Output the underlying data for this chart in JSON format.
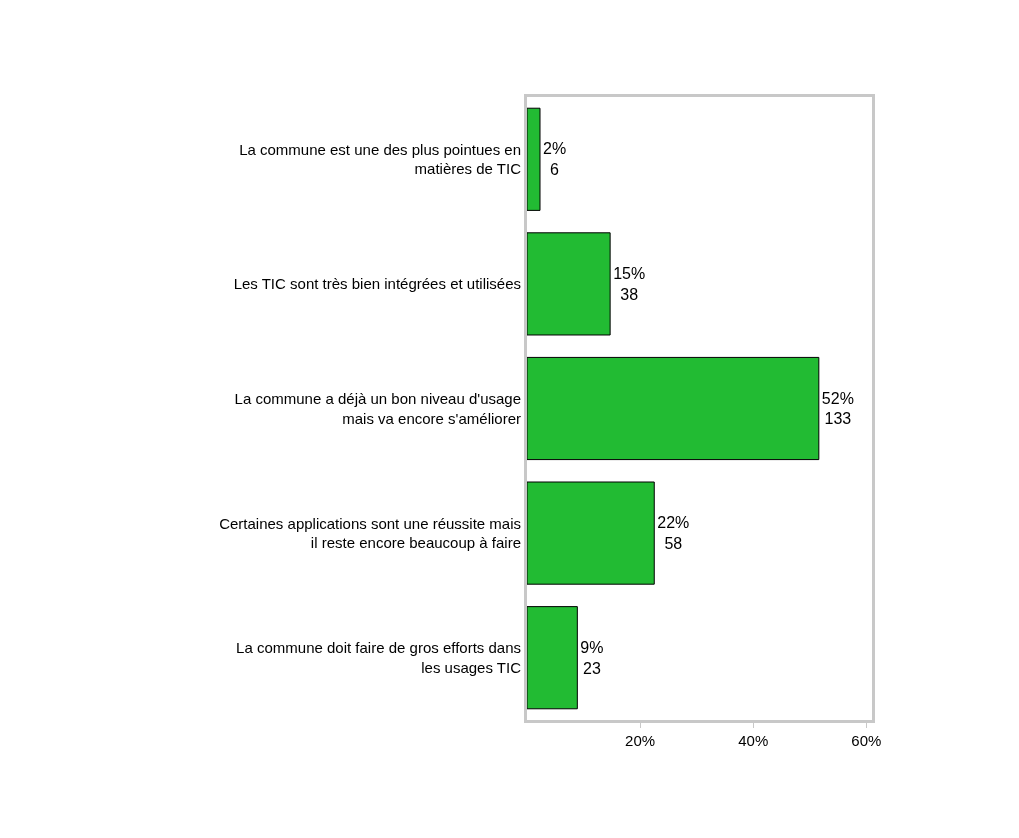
{
  "chart_data": {
    "type": "bar",
    "orientation": "horizontal",
    "categories": [
      "La commune est une des plus pointues en\nmatières de TIC",
      "Les TIC sont très bien intégrées et utilisées",
      "La commune a déjà un bon niveau d'usage\nmais va encore s'améliorer",
      "Certaines applications sont une réussite mais\nil reste encore beaucoup à faire",
      "La commune doit faire de gros efforts dans\nles usages TIC"
    ],
    "values": [
      2.3,
      14.7,
      51.6,
      22.5,
      8.9
    ],
    "value_labels": [
      "2%\n6",
      "15%\n38",
      "52%\n133",
      "22%\n58",
      "9%\n23"
    ],
    "color": "#22bb33",
    "xlim": [
      0,
      61
    ],
    "xticks": [
      {
        "value": 20,
        "label": "20%"
      },
      {
        "value": 40,
        "label": "40%"
      },
      {
        "value": 60,
        "label": "60%"
      }
    ],
    "legend": false
  }
}
